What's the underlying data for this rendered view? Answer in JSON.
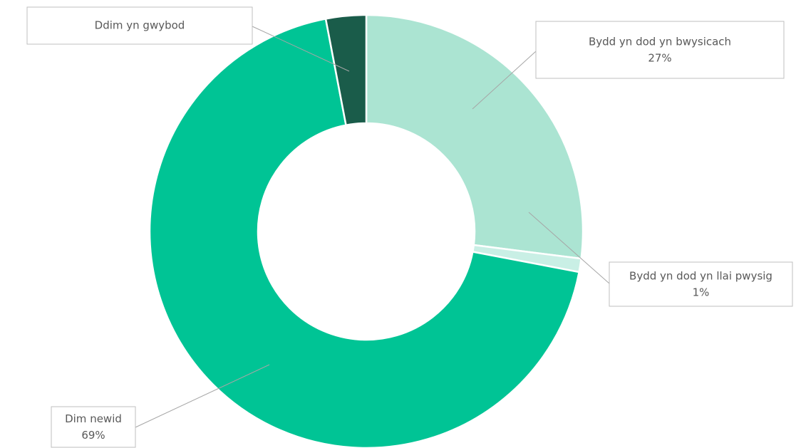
{
  "chart_data": {
    "type": "donut",
    "categories": [
      "Bydd yn dod yn bwysicach",
      "Bydd yn dod yn llai pwysig",
      "Dim newid",
      "Ddim yn gwybod"
    ],
    "values": [
      27,
      1,
      69,
      3
    ],
    "value_labels": [
      "27%",
      "1%",
      "69%",
      null
    ],
    "colors": [
      "#abe4d2",
      "#c9efe5",
      "#00c495",
      "#1a5c4a"
    ]
  }
}
